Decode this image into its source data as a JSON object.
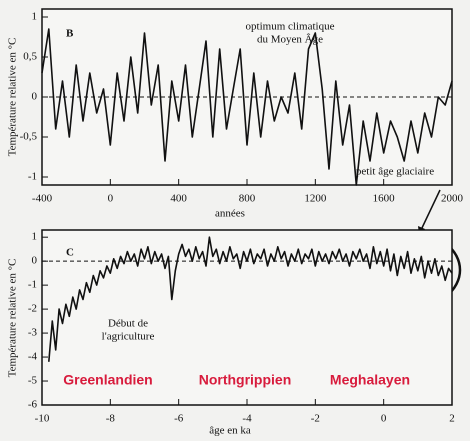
{
  "chart_data": [
    {
      "type": "line",
      "panel_label": "B",
      "y_label": "Température relative en °C",
      "x_label": "années",
      "annotations": [
        "optimum climatique",
        "du Moyen Âge",
        "petit âge glaciaire"
      ],
      "color": "#111111",
      "zero_line": "dashed",
      "xlim": [
        -400,
        2000
      ],
      "xticks": [
        -400,
        0,
        400,
        800,
        1200,
        1600,
        2000
      ],
      "ylim": [
        -1.1,
        1.1
      ],
      "yticks": [
        1,
        {
          "value": 0.5,
          "label": "0,5"
        },
        0,
        {
          "value": -0.5,
          "label": "-0,5"
        },
        -1
      ],
      "x": [
        -400,
        -360,
        -320,
        -280,
        -240,
        -200,
        -160,
        -120,
        -80,
        -40,
        0,
        40,
        80,
        120,
        160,
        200,
        240,
        280,
        320,
        360,
        400,
        440,
        480,
        520,
        560,
        600,
        640,
        680,
        720,
        760,
        800,
        840,
        880,
        920,
        960,
        1000,
        1040,
        1080,
        1120,
        1160,
        1200,
        1240,
        1280,
        1320,
        1360,
        1400,
        1440,
        1480,
        1520,
        1560,
        1600,
        1640,
        1680,
        1720,
        1760,
        1800,
        1840,
        1880,
        1920,
        1960,
        2000
      ],
      "values": [
        0.3,
        0.85,
        -0.4,
        0.2,
        -0.5,
        0.4,
        -0.3,
        0.3,
        -0.2,
        0.1,
        -0.6,
        0.3,
        -0.3,
        0.5,
        -0.2,
        0.8,
        -0.1,
        0.4,
        -0.8,
        0.2,
        -0.3,
        0.4,
        -0.5,
        0.1,
        0.7,
        -0.5,
        0.6,
        -0.4,
        0.1,
        0.6,
        -0.6,
        0.3,
        -0.5,
        0.2,
        -0.3,
        0.0,
        -0.2,
        0.3,
        -0.4,
        0.6,
        0.8,
        0.1,
        -0.9,
        0.2,
        -0.6,
        -0.1,
        -1.1,
        -0.3,
        -0.8,
        -0.2,
        -0.7,
        -0.3,
        -0.5,
        -0.8,
        -0.3,
        -0.7,
        -0.2,
        -0.5,
        0.0,
        -0.1,
        0.2
      ]
    },
    {
      "type": "line",
      "panel_label": "C",
      "y_label": "Température relative en °C",
      "x_label": "âge en ka",
      "annotations": [
        "Début de",
        "l'agriculture"
      ],
      "periods": [
        "Greenlandien",
        "Northgrippien",
        "Meghalayen"
      ],
      "period_color": "#d81b3c",
      "color": "#111111",
      "zero_line": "dashed",
      "xlim": [
        -10,
        2
      ],
      "xticks": [
        -10,
        -8,
        -6,
        -4,
        -2,
        0,
        2
      ],
      "ylim": [
        -6,
        1.3
      ],
      "yticks": [
        1,
        0,
        -1,
        -2,
        -3,
        -4,
        -5,
        -6
      ],
      "x": [
        -9.8,
        -9.7,
        -9.6,
        -9.5,
        -9.4,
        -9.3,
        -9.2,
        -9.1,
        -9.0,
        -8.9,
        -8.8,
        -8.7,
        -8.6,
        -8.5,
        -8.4,
        -8.3,
        -8.2,
        -8.1,
        -8.0,
        -7.9,
        -7.8,
        -7.7,
        -7.6,
        -7.5,
        -7.4,
        -7.3,
        -7.2,
        -7.1,
        -7.0,
        -6.9,
        -6.8,
        -6.7,
        -6.6,
        -6.5,
        -6.4,
        -6.3,
        -6.2,
        -6.1,
        -6.0,
        -5.9,
        -5.8,
        -5.7,
        -5.6,
        -5.5,
        -5.4,
        -5.3,
        -5.2,
        -5.1,
        -5.0,
        -4.9,
        -4.8,
        -4.7,
        -4.6,
        -4.5,
        -4.4,
        -4.3,
        -4.2,
        -4.1,
        -4.0,
        -3.9,
        -3.8,
        -3.7,
        -3.6,
        -3.5,
        -3.4,
        -3.3,
        -3.2,
        -3.1,
        -3.0,
        -2.9,
        -2.8,
        -2.7,
        -2.6,
        -2.5,
        -2.4,
        -2.3,
        -2.2,
        -2.1,
        -2.0,
        -1.9,
        -1.8,
        -1.7,
        -1.6,
        -1.5,
        -1.4,
        -1.3,
        -1.2,
        -1.1,
        -1.0,
        -0.9,
        -0.8,
        -0.7,
        -0.6,
        -0.5,
        -0.4,
        -0.3,
        -0.2,
        -0.1,
        0.0,
        0.1,
        0.2,
        0.3,
        0.4,
        0.5,
        0.6,
        0.7,
        0.8,
        0.9,
        1.0,
        1.1,
        1.2,
        1.3,
        1.4,
        1.5,
        1.6,
        1.7,
        1.8,
        1.9,
        2.0
      ],
      "values": [
        -4.2,
        -2.5,
        -3.7,
        -2.0,
        -2.6,
        -1.8,
        -2.3,
        -1.5,
        -2.0,
        -1.2,
        -1.6,
        -0.9,
        -1.3,
        -0.6,
        -1.0,
        -0.4,
        -0.7,
        -0.2,
        -0.5,
        0.1,
        -0.3,
        0.2,
        -0.1,
        0.4,
        0.0,
        0.3,
        -0.2,
        0.5,
        0.1,
        0.6,
        -0.1,
        0.4,
        0.0,
        0.3,
        -0.3,
        0.2,
        -1.6,
        -0.4,
        0.3,
        0.7,
        0.2,
        0.5,
        0.0,
        0.6,
        0.1,
        0.4,
        -0.2,
        1.0,
        0.2,
        0.5,
        -0.1,
        0.4,
        0.0,
        0.6,
        0.1,
        0.3,
        -0.3,
        0.4,
        0.0,
        0.5,
        -0.1,
        0.3,
        0.1,
        0.5,
        -0.2,
        0.3,
        0.0,
        0.6,
        0.1,
        0.4,
        -0.2,
        0.3,
        0.0,
        0.5,
        -0.1,
        0.3,
        0.1,
        0.5,
        -0.2,
        0.4,
        0.0,
        0.3,
        -0.1,
        0.4,
        0.1,
        0.5,
        0.0,
        0.3,
        -0.2,
        0.4,
        0.1,
        0.5,
        0.0,
        0.3,
        -0.3,
        0.6,
        -0.1,
        0.4,
        -0.2,
        0.5,
        -0.4,
        0.3,
        -0.6,
        0.2,
        -0.3,
        0.4,
        -0.5,
        0.1,
        -0.4,
        0.2,
        -0.7,
        0.0,
        -0.5,
        0.1,
        -0.6,
        -0.2,
        -0.8,
        -0.3,
        -0.5
      ]
    }
  ]
}
